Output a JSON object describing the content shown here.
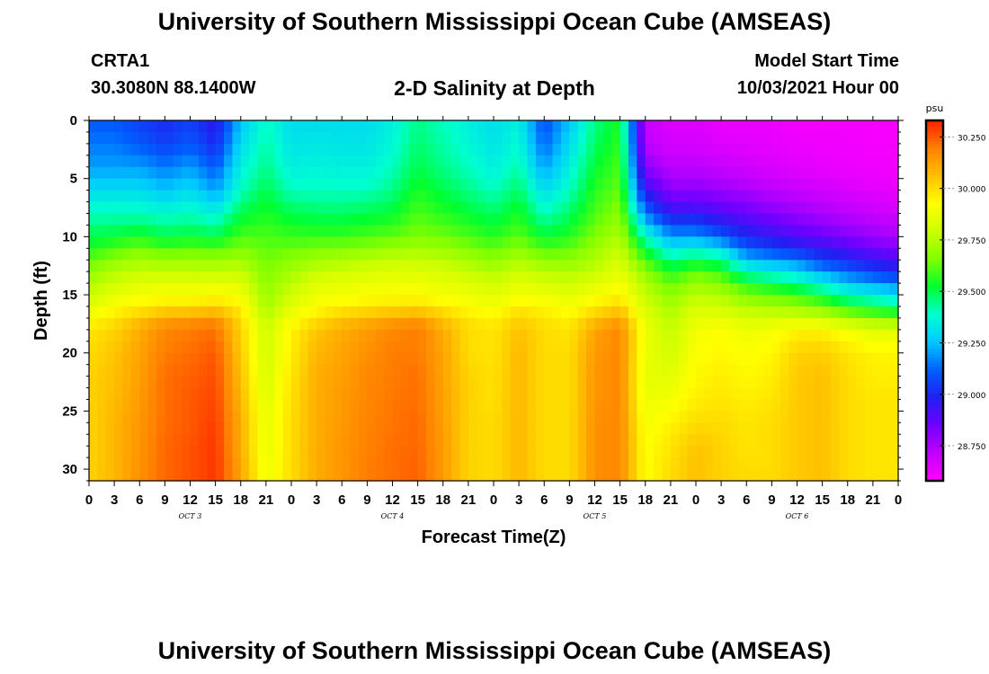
{
  "page": {
    "title_top": "University of Southern Mississippi Ocean Cube (AMSEAS)",
    "title_bottom": "University of Southern Mississippi Ocean Cube (AMSEAS)",
    "station_id": "CRTA1",
    "station_coords": "30.3080N  88.1400W",
    "plot_title": "2-D Salinity at Depth",
    "model_start_label": "Model Start Time",
    "model_start_value": "10/03/2021 Hour 00"
  },
  "colors": {
    "scale": [
      "#ff00ff",
      "#c000ff",
      "#7000ff",
      "#2020f0",
      "#0060ff",
      "#00c8ff",
      "#00ffd0",
      "#00ff30",
      "#80ff00",
      "#ccff00",
      "#ffff00",
      "#ffc000",
      "#ff8000",
      "#ff2000"
    ],
    "frame": "#000000"
  },
  "chart_data": {
    "type": "heatmap",
    "title": "2-D Salinity at Depth",
    "xlabel": "Forecast Time(Z)",
    "ylabel": "Depth (ft)",
    "x_hours": [
      0,
      3,
      6,
      9,
      12,
      15,
      18,
      21,
      24,
      27,
      30,
      33,
      36,
      39,
      42,
      45,
      48,
      51,
      54,
      57,
      60,
      63,
      66,
      69,
      72,
      75,
      78,
      81,
      84,
      87,
      90,
      93,
      96
    ],
    "x_tick_labels": [
      "0",
      "3",
      "6",
      "9",
      "12",
      "15",
      "18",
      "21",
      "0",
      "3",
      "6",
      "9",
      "12",
      "15",
      "18",
      "21",
      "0",
      "3",
      "6",
      "9",
      "12",
      "15",
      "18",
      "21",
      "0",
      "3",
      "6",
      "9",
      "12",
      "15",
      "18",
      "21",
      "0"
    ],
    "day_labels": [
      {
        "label": "OCT  3",
        "hour": 12
      },
      {
        "label": "OCT  4",
        "hour": 36
      },
      {
        "label": "OCT  5",
        "hour": 60
      },
      {
        "label": "OCT  6",
        "hour": 84
      }
    ],
    "y_ticks": [
      0,
      5,
      10,
      15,
      20,
      25,
      30
    ],
    "y_tick_labels": [
      "0",
      "5",
      "10",
      "15",
      "20",
      "25",
      "30"
    ],
    "ylim": [
      0,
      31
    ],
    "y_inverted": true,
    "colorbar": {
      "unit": "psu",
      "min": 28.58,
      "max": 30.33,
      "ticks": [
        30.25,
        30.0,
        29.75,
        29.5,
        29.25,
        29.0,
        28.75
      ],
      "tick_labels": [
        "30.250",
        "30.000",
        "29.750",
        "29.500",
        "29.250",
        "29.000",
        "28.750"
      ]
    },
    "depth_levels_ft": [
      0,
      2,
      4,
      6,
      8,
      10,
      11,
      12,
      13,
      14,
      15,
      16,
      17,
      18,
      20,
      22,
      24,
      26,
      28,
      30,
      31
    ],
    "profiles": [
      {
        "hour": 0,
        "values": [
          29.1,
          29.15,
          29.2,
          29.3,
          29.4,
          29.5,
          29.55,
          29.62,
          29.68,
          29.74,
          29.78,
          29.85,
          29.92,
          29.98,
          30.0,
          30.02,
          30.02,
          30.02,
          30.02,
          30.02,
          30.02
        ]
      },
      {
        "hour": 3,
        "values": [
          29.1,
          29.15,
          29.2,
          29.3,
          29.4,
          29.52,
          29.6,
          29.68,
          29.75,
          29.8,
          29.86,
          29.92,
          29.98,
          30.02,
          30.05,
          30.06,
          30.07,
          30.08,
          30.08,
          30.08,
          30.08
        ]
      },
      {
        "hour": 6,
        "values": [
          29.05,
          29.1,
          29.2,
          29.3,
          29.4,
          29.55,
          29.65,
          29.72,
          29.78,
          29.84,
          29.9,
          29.95,
          30.05,
          30.1,
          30.12,
          30.13,
          30.14,
          30.15,
          30.15,
          30.16,
          30.16
        ]
      },
      {
        "hour": 9,
        "values": [
          29.0,
          29.05,
          29.15,
          29.25,
          29.38,
          29.5,
          29.6,
          29.7,
          29.78,
          29.85,
          29.92,
          29.98,
          30.12,
          30.18,
          30.2,
          30.22,
          30.22,
          30.22,
          30.23,
          30.23,
          30.23
        ]
      },
      {
        "hour": 12,
        "values": [
          29.05,
          29.1,
          29.2,
          29.3,
          29.4,
          29.52,
          29.62,
          29.7,
          29.78,
          29.85,
          29.92,
          29.98,
          30.14,
          30.2,
          30.22,
          30.24,
          30.25,
          30.25,
          30.26,
          30.26,
          30.26
        ]
      },
      {
        "hour": 15,
        "values": [
          28.95,
          29.0,
          29.1,
          29.2,
          29.35,
          29.5,
          29.6,
          29.7,
          29.78,
          29.86,
          29.94,
          30.0,
          30.16,
          30.22,
          30.25,
          30.27,
          30.28,
          30.29,
          30.3,
          30.3,
          30.3
        ]
      },
      {
        "hour": 18,
        "values": [
          29.25,
          29.3,
          29.35,
          29.4,
          29.5,
          29.6,
          29.66,
          29.72,
          29.78,
          29.84,
          29.9,
          29.96,
          30.0,
          30.02,
          30.04,
          30.06,
          30.08,
          30.1,
          30.1,
          30.12,
          30.12
        ]
      },
      {
        "hour": 21,
        "values": [
          29.4,
          29.42,
          29.45,
          29.5,
          29.55,
          29.6,
          29.62,
          29.64,
          29.66,
          29.68,
          29.7,
          29.72,
          29.76,
          29.8,
          29.8,
          29.82,
          29.84,
          29.86,
          29.86,
          29.88,
          29.88
        ]
      },
      {
        "hour": 24,
        "values": [
          29.3,
          29.32,
          29.35,
          29.4,
          29.5,
          29.58,
          29.63,
          29.68,
          29.72,
          29.76,
          29.8,
          29.85,
          29.9,
          29.95,
          29.96,
          29.98,
          29.99,
          30.0,
          30.0,
          30.0,
          30.0
        ]
      },
      {
        "hour": 27,
        "values": [
          29.3,
          29.33,
          29.36,
          29.4,
          29.48,
          29.58,
          29.65,
          29.72,
          29.78,
          29.84,
          29.88,
          29.92,
          29.98,
          30.05,
          30.08,
          30.1,
          30.1,
          30.1,
          30.1,
          30.1,
          30.1
        ]
      },
      {
        "hour": 30,
        "values": [
          29.3,
          29.32,
          29.35,
          29.4,
          29.48,
          29.58,
          29.66,
          29.74,
          29.8,
          29.86,
          29.9,
          29.95,
          30.05,
          30.1,
          30.12,
          30.13,
          30.14,
          30.14,
          30.15,
          30.15,
          30.15
        ]
      },
      {
        "hour": 33,
        "values": [
          29.3,
          29.32,
          29.35,
          29.4,
          29.5,
          29.6,
          29.68,
          29.76,
          29.82,
          29.87,
          29.92,
          29.97,
          30.08,
          30.14,
          30.16,
          30.18,
          30.18,
          30.19,
          30.19,
          30.2,
          30.2
        ]
      },
      {
        "hour": 36,
        "values": [
          29.35,
          29.37,
          29.4,
          29.45,
          29.52,
          29.62,
          29.7,
          29.78,
          29.84,
          29.88,
          29.93,
          29.98,
          30.12,
          30.18,
          30.2,
          30.2,
          30.21,
          30.21,
          30.22,
          30.22,
          30.22
        ]
      },
      {
        "hour": 39,
        "values": [
          29.45,
          29.47,
          29.5,
          29.55,
          29.6,
          29.66,
          29.72,
          29.78,
          29.84,
          29.88,
          29.93,
          29.99,
          30.14,
          30.2,
          30.2,
          30.22,
          30.22,
          30.23,
          30.23,
          30.24,
          30.24
        ]
      },
      {
        "hour": 42,
        "values": [
          29.4,
          29.42,
          29.45,
          29.5,
          29.56,
          29.64,
          29.7,
          29.76,
          29.82,
          29.86,
          29.9,
          29.96,
          30.05,
          30.1,
          30.12,
          30.12,
          30.13,
          30.13,
          30.14,
          30.14,
          30.14
        ]
      },
      {
        "hour": 45,
        "values": [
          29.35,
          29.37,
          29.4,
          29.45,
          29.52,
          29.6,
          29.66,
          29.72,
          29.78,
          29.84,
          29.88,
          29.92,
          29.98,
          30.0,
          30.0,
          30.02,
          30.02,
          30.02,
          30.02,
          30.02,
          30.02
        ]
      },
      {
        "hour": 48,
        "values": [
          29.3,
          29.32,
          29.35,
          29.4,
          29.48,
          29.56,
          29.62,
          29.68,
          29.74,
          29.8,
          29.85,
          29.9,
          29.95,
          29.98,
          29.98,
          29.99,
          29.99,
          30.0,
          30.0,
          30.0,
          30.0
        ]
      },
      {
        "hour": 51,
        "values": [
          29.35,
          29.38,
          29.42,
          29.48,
          29.55,
          29.62,
          29.68,
          29.74,
          29.8,
          29.85,
          29.9,
          29.96,
          30.02,
          30.06,
          30.08,
          30.08,
          30.08,
          30.08,
          30.08,
          30.08,
          30.08
        ]
      },
      {
        "hour": 54,
        "values": [
          29.08,
          29.12,
          29.2,
          29.3,
          29.4,
          29.52,
          29.6,
          29.68,
          29.76,
          29.82,
          29.88,
          29.94,
          29.98,
          30.0,
          30.0,
          30.0,
          30.0,
          30.0,
          30.0,
          30.0,
          30.0
        ]
      },
      {
        "hour": 57,
        "values": [
          29.25,
          29.3,
          29.35,
          29.4,
          29.48,
          29.56,
          29.62,
          29.68,
          29.74,
          29.8,
          29.85,
          29.9,
          29.95,
          29.98,
          30.0,
          30.0,
          30.0,
          30.0,
          30.0,
          30.0,
          30.0
        ]
      },
      {
        "hour": 60,
        "values": [
          29.45,
          29.48,
          29.52,
          29.56,
          29.6,
          29.66,
          29.7,
          29.74,
          29.78,
          29.84,
          29.9,
          29.96,
          30.05,
          30.12,
          30.14,
          30.15,
          30.15,
          30.16,
          30.16,
          30.16,
          30.16
        ]
      },
      {
        "hour": 63,
        "values": [
          29.55,
          29.57,
          29.6,
          29.63,
          29.68,
          29.74,
          29.78,
          29.82,
          29.86,
          29.9,
          29.95,
          30.02,
          30.12,
          30.18,
          30.18,
          30.18,
          30.18,
          30.18,
          30.18,
          30.18,
          30.18
        ]
      },
      {
        "hour": 66,
        "values": [
          28.7,
          28.72,
          28.8,
          28.95,
          29.15,
          29.4,
          29.5,
          29.6,
          29.68,
          29.74,
          29.78,
          29.82,
          29.85,
          29.88,
          29.88,
          29.86,
          29.88,
          29.9,
          29.92,
          29.92,
          29.92
        ]
      },
      {
        "hour": 69,
        "values": [
          28.65,
          28.67,
          28.72,
          28.8,
          28.95,
          29.2,
          29.32,
          29.45,
          29.55,
          29.62,
          29.68,
          29.72,
          29.75,
          29.78,
          29.8,
          29.85,
          29.9,
          29.95,
          29.98,
          30.0,
          30.0
        ]
      },
      {
        "hour": 72,
        "values": [
          28.65,
          28.67,
          28.72,
          28.8,
          28.95,
          29.2,
          29.35,
          29.5,
          29.62,
          29.7,
          29.76,
          29.82,
          29.86,
          29.9,
          29.92,
          29.94,
          29.96,
          30.0,
          30.05,
          30.06,
          30.06
        ]
      },
      {
        "hour": 75,
        "values": [
          28.62,
          28.65,
          28.7,
          28.78,
          28.9,
          29.1,
          29.3,
          29.45,
          29.58,
          29.66,
          29.74,
          29.8,
          29.86,
          29.92,
          29.94,
          29.96,
          29.98,
          30.0,
          30.02,
          30.02,
          30.02
        ]
      },
      {
        "hour": 78,
        "values": [
          28.62,
          28.64,
          28.68,
          28.75,
          28.86,
          29.0,
          29.1,
          29.25,
          29.4,
          29.55,
          29.66,
          29.74,
          29.82,
          29.88,
          29.92,
          29.94,
          29.96,
          29.98,
          29.98,
          30.0,
          30.0
        ]
      },
      {
        "hour": 81,
        "values": [
          28.62,
          28.63,
          28.66,
          28.72,
          28.82,
          28.95,
          29.05,
          29.2,
          29.35,
          29.5,
          29.62,
          29.72,
          29.82,
          29.9,
          29.94,
          29.96,
          29.98,
          30.0,
          30.0,
          30.0,
          30.0
        ]
      },
      {
        "hour": 84,
        "values": [
          28.6,
          28.62,
          28.64,
          28.7,
          28.78,
          28.9,
          29.0,
          29.15,
          29.3,
          29.45,
          29.58,
          29.7,
          29.82,
          29.95,
          30.02,
          30.04,
          30.04,
          30.04,
          30.04,
          30.04,
          30.04
        ]
      },
      {
        "hour": 87,
        "values": [
          28.6,
          28.61,
          28.63,
          28.68,
          28.75,
          28.86,
          28.95,
          29.05,
          29.2,
          29.35,
          29.5,
          29.65,
          29.8,
          29.95,
          30.03,
          30.06,
          30.06,
          30.06,
          30.06,
          30.06,
          30.06
        ]
      },
      {
        "hour": 90,
        "values": [
          28.6,
          28.61,
          28.62,
          28.66,
          28.72,
          28.82,
          28.9,
          29.0,
          29.12,
          29.25,
          29.4,
          29.55,
          29.72,
          29.9,
          29.98,
          30.0,
          30.0,
          30.0,
          30.0,
          30.0,
          30.0
        ]
      },
      {
        "hour": 93,
        "values": [
          28.6,
          28.6,
          28.61,
          28.64,
          28.7,
          28.78,
          28.85,
          28.95,
          29.05,
          29.2,
          29.35,
          29.5,
          29.68,
          29.85,
          29.95,
          29.96,
          29.98,
          29.98,
          29.98,
          29.98,
          29.98
        ]
      },
      {
        "hour": 96,
        "values": [
          28.6,
          28.6,
          28.61,
          28.63,
          28.68,
          28.75,
          28.82,
          28.9,
          29.0,
          29.15,
          29.3,
          29.45,
          29.65,
          29.85,
          29.95,
          29.96,
          29.98,
          29.98,
          29.98,
          29.98,
          29.98
        ]
      }
    ]
  }
}
